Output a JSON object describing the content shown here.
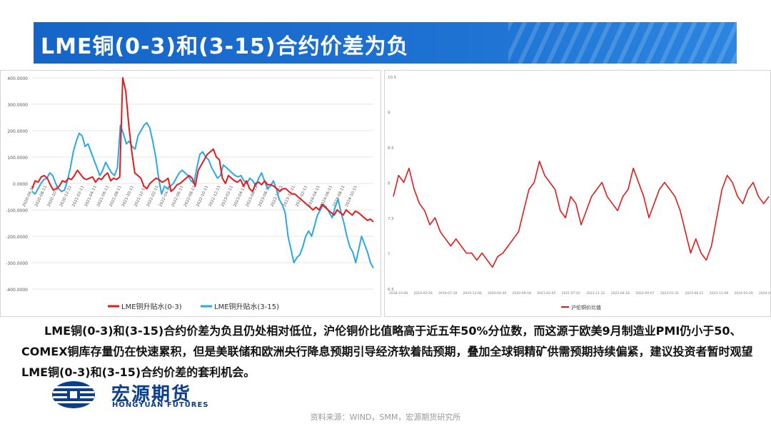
{
  "title": "LME铜(0-3)和(3-15)合约价差为负",
  "paragraph": "LME铜(0-3)和(3-15)合约价差为负且仍处相对低位，沪伦铜价比值略高于近五年50%分位数，而这源于欧美9月制造业PMI仍小于50、COMEX铜库存量仍在快速累积，但是美联储和欧洲央行降息预期引导经济软着陆预期，叠加全球铜精矿供需预期持续偏紧，建议投资者暂时观望LME铜(0-3)和(3-15)合约价差的套利机会。",
  "source": "资料来源：WIND，SMM，宏源期货研究所",
  "logo": {
    "cn": "宏源期货",
    "en": "HONGYUAN FUTURES"
  },
  "colors": {
    "title_bg": "#1565c8",
    "red_series": "#e41a1c",
    "blue_series": "#29a8e8",
    "logo": "#0b3f8c"
  },
  "chart_data": [
    {
      "type": "line",
      "yticks": [
        "400.0000",
        "300.0000",
        "200.0000",
        "100.0000",
        "0.0000",
        "-100.0000",
        "-200.0000",
        "-300.0000",
        "-400.0000"
      ],
      "ylim": [
        -400,
        400
      ],
      "xticks": [
        "2020-06-11",
        "2020-08-11",
        "2020-10-11",
        "2020-12-11",
        "2021-02-11",
        "2021-04-11",
        "2021-06-11",
        "2021-08-11",
        "2021-10-11",
        "2021-12-11",
        "2022-02-11",
        "2022-04-11",
        "2022-06-11",
        "2022-08-11",
        "2022-10-11",
        "2022-12-11",
        "2023-02-11",
        "2023-04-11",
        "2023-06-11",
        "2023-08-11",
        "2023-10-11",
        "2023-12-11",
        "2024-02-11",
        "2024-04-11",
        "2024-06-11",
        "2024-08-11",
        "2024-10-11"
      ],
      "legend": [
        "LME铜升贴水(0-3)",
        "LME铜升贴水(3-15)"
      ],
      "series": [
        {
          "name": "LME铜升贴水(0-3)",
          "color": "#e41a1c",
          "values": [
            -20,
            10,
            5,
            25,
            30,
            20,
            -5,
            -25,
            -20,
            -10,
            10,
            5,
            20,
            15,
            30,
            50,
            35,
            20,
            15,
            20,
            25,
            5,
            20,
            15,
            30,
            40,
            10,
            20,
            15,
            25,
            400,
            350,
            220,
            120,
            40,
            30,
            20,
            -10,
            -20,
            0,
            10,
            20,
            15,
            5,
            10,
            20,
            -30,
            -20,
            -5,
            0,
            10,
            20,
            30,
            20,
            -10,
            50,
            70,
            90,
            110,
            120,
            130,
            100,
            90,
            20,
            0,
            30,
            20,
            10,
            5,
            15,
            -10,
            10,
            -20,
            -30,
            0,
            5,
            -5,
            10,
            -5,
            -5,
            -10,
            -20,
            -30,
            -20,
            -20,
            -30,
            -40,
            -40,
            -50,
            -60,
            -70,
            -80,
            -90,
            -100,
            -90,
            -100,
            -80,
            -90,
            -100,
            -110,
            -120,
            -100,
            -110,
            -120,
            -100,
            -110,
            -120,
            -105,
            -110,
            -120,
            -130,
            -140,
            -135,
            -145
          ]
        },
        {
          "name": "LME铜升贴水(3-15)",
          "color": "#29a8e8",
          "values": [
            -30,
            -40,
            -20,
            0,
            15,
            20,
            40,
            30,
            0,
            -20,
            -30,
            -25,
            10,
            60,
            120,
            160,
            190,
            180,
            140,
            150,
            120,
            90,
            60,
            30,
            50,
            80,
            60,
            40,
            30,
            60,
            220,
            190,
            150,
            160,
            140,
            130,
            180,
            200,
            220,
            230,
            210,
            160,
            100,
            20,
            -40,
            -10,
            -20,
            -10,
            0,
            20,
            40,
            50,
            40,
            30,
            10,
            0,
            60,
            110,
            120,
            100,
            90,
            60,
            40,
            20,
            30,
            70,
            60,
            50,
            40,
            30,
            25,
            30,
            10,
            0,
            20,
            10,
            -10,
            20,
            40,
            10,
            -20,
            -10,
            10,
            -20,
            -60,
            -80,
            -110,
            -200,
            -250,
            -300,
            -280,
            -270,
            -240,
            -200,
            -180,
            -200,
            -160,
            -120,
            -100,
            -80,
            -90,
            -110,
            -130,
            -90,
            -60,
            -110,
            -150,
            -200,
            -240,
            -260,
            -300,
            -250,
            -200,
            -230,
            -260,
            -300,
            -320
          ]
        }
      ]
    },
    {
      "type": "line",
      "yticks": [
        "10.5",
        "9",
        "8.5",
        "8",
        "7.5",
        "7",
        "6.5"
      ],
      "xticks": [
        "2018-10-08",
        "2019-02-26",
        "2019-07-18",
        "2019-12-06",
        "2020-04-30",
        "2020-09-18",
        "2021-02-05",
        "2021-07-02",
        "2021-11-22",
        "2022-04-18",
        "2022-09-07",
        "2023-01-31",
        "2023-06-21",
        "2023-11-08",
        "2024-03-29",
        "2024-08-20"
      ],
      "legend": [
        "沪伦铜价比值"
      ],
      "series": [
        {
          "name": "沪伦铜价比值",
          "color": "#e41a1c",
          "values": [
            7.8,
            8.1,
            8.0,
            8.2,
            7.9,
            7.7,
            7.6,
            7.4,
            7.5,
            7.3,
            7.2,
            7.1,
            7.2,
            7.1,
            7.0,
            7.0,
            6.9,
            7.0,
            6.9,
            6.8,
            6.95,
            7.0,
            7.1,
            7.2,
            7.3,
            7.6,
            7.9,
            8.0,
            8.3,
            8.1,
            8.0,
            7.9,
            7.6,
            7.5,
            7.8,
            7.7,
            7.4,
            7.6,
            7.8,
            7.9,
            8.0,
            7.8,
            7.7,
            7.6,
            7.8,
            7.9,
            8.2,
            8.0,
            7.8,
            7.5,
            7.7,
            7.9,
            8.0,
            7.9,
            7.8,
            7.6,
            7.3,
            7.0,
            7.2,
            7.0,
            6.9,
            7.1,
            7.5,
            7.9,
            8.1,
            8.0,
            7.8,
            7.7,
            7.9,
            8.0,
            7.8,
            7.7,
            7.8
          ]
        }
      ]
    }
  ]
}
